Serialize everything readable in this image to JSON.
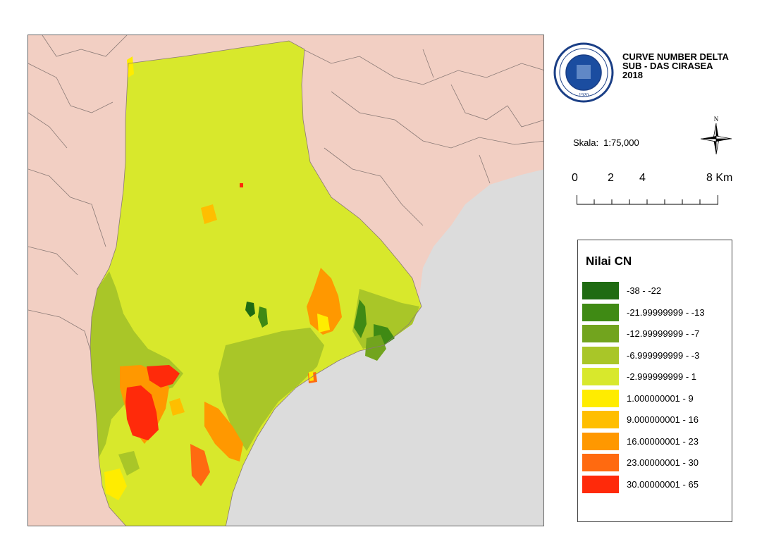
{
  "title": {
    "line1": "CURVE NUMBER DELTA",
    "line2": "SUB - DAS CIRASEA",
    "line3": "2018"
  },
  "scale": {
    "label": "Skala:",
    "value": "1:75,000"
  },
  "north_arrow": {
    "label": "N",
    "icon": "north-arrow-icon"
  },
  "scalebar": {
    "ticks": [
      "0",
      "2",
      "4",
      "8 Km"
    ]
  },
  "logo": {
    "icon": "itb-seal-icon",
    "text": "INSTITUT TEKNOLOGI BANDUNG",
    "year": "1920"
  },
  "legend": {
    "title": "Nilai CN",
    "items": [
      {
        "label": "-38 - -22",
        "color": "#1f6b12"
      },
      {
        "label": "-21.99999999 - -13",
        "color": "#3f8a14"
      },
      {
        "label": "-12.99999999 - -7",
        "color": "#72a41e"
      },
      {
        "label": "-6.999999999 - -3",
        "color": "#a9c628"
      },
      {
        "label": "-2.999999999 - 1",
        "color": "#d8e82c"
      },
      {
        "label": "1.000000001 - 9",
        "color": "#ffec00"
      },
      {
        "label": "9.000000001 - 16",
        "color": "#ffbe00"
      },
      {
        "label": "16.00000001 - 23",
        "color": "#ff9800"
      },
      {
        "label": "23.00000001 - 30",
        "color": "#ff6a10"
      },
      {
        "label": "30.00000001 - 65",
        "color": "#ff2a0a"
      }
    ]
  },
  "map_colors": {
    "surrounding": "#f2cfc3",
    "water": "#dcdcdc",
    "boundary": "#8a7a76"
  }
}
